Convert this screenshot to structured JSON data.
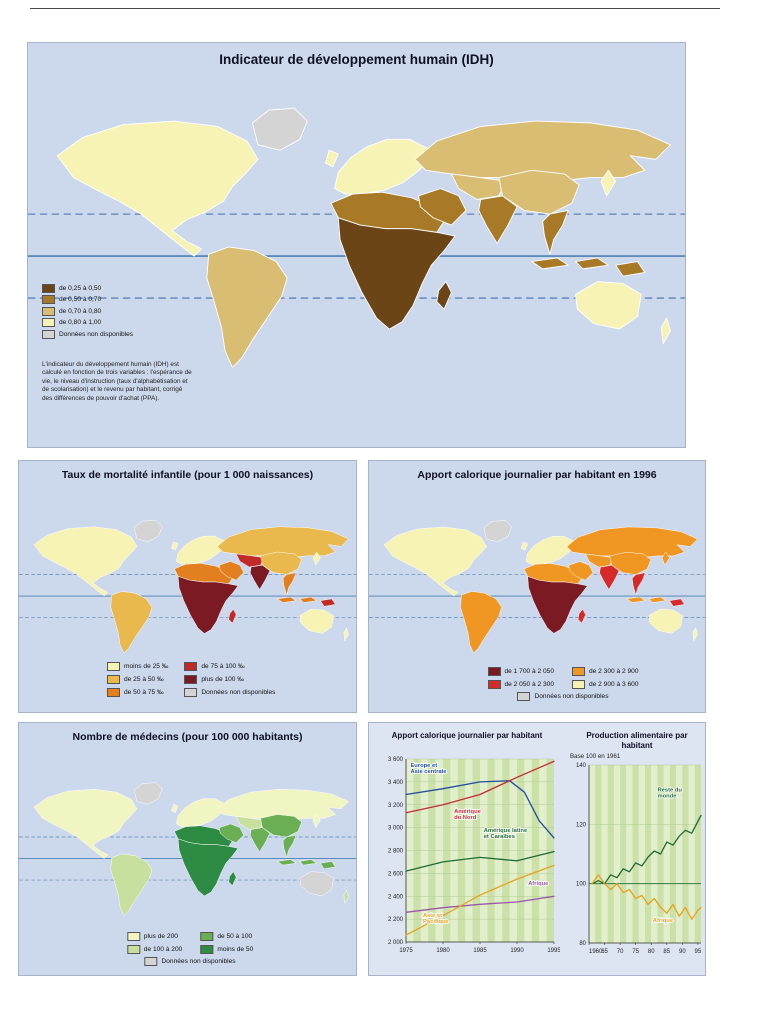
{
  "panels": {
    "idh": {
      "title": "Indicateur de développement humain (IDH)",
      "legend": [
        {
          "label": "de 0,25 à 0,50",
          "color": "#6b4516"
        },
        {
          "label": "de 0,50 à 0,70",
          "color": "#a87a28"
        },
        {
          "label": "de 0,70 à 0,80",
          "color": "#d9bd72"
        },
        {
          "label": "de 0,80 à 1,00",
          "color": "#f7f3b5"
        },
        {
          "label": "Données non disponibles",
          "color": "#d4d4d4"
        }
      ],
      "note": "L'indicateur du développement humain (IDH) est calculé en fonction de trois variables : l'espérance de vie, le niveau d'instruction (taux d'alphabétisation et de scolarisation) et le revenu par habitant, corrigé des différences de pouvoir d'achat (PPA).",
      "region_colors": {
        "greenland": "#d4d4d4",
        "north_america": "#f7f3b5",
        "south_america": "#d9bd72",
        "europe": "#f7f3b5",
        "uk": "#f7f3b5",
        "africa_north": "#a87a28",
        "africa": "#6b4516",
        "madagascar": "#6b4516",
        "russia": "#d9bd72",
        "central_asia": "#d9bd72",
        "middle_east": "#a87a28",
        "india": "#a87a28",
        "china": "#d9bd72",
        "southeast_asia": "#a87a28",
        "indonesia": "#a87a28",
        "new_guinea": "#a87a28",
        "australia": "#f7f3b5",
        "japan": "#f7f3b5",
        "new_zealand": "#f7f3b5"
      }
    },
    "mortality": {
      "title": "Taux de mortalité infantile (pour 1 000 naissances)",
      "legend": [
        {
          "label": "moins de 25 ‰",
          "color": "#f7f3b5"
        },
        {
          "label": "de 25 à 50 ‰",
          "color": "#e9b94e"
        },
        {
          "label": "de 50 à 75 ‰",
          "color": "#e2801f"
        },
        {
          "label": "de 75 à 100 ‰",
          "color": "#c22a28"
        },
        {
          "label": "plus de 100 ‰",
          "color": "#7b1a23"
        },
        {
          "label": "Données non disponibles",
          "color": "#d4d4d4"
        }
      ],
      "region_colors": {
        "greenland": "#d4d4d4",
        "north_america": "#f7f3b5",
        "south_america": "#e9b94e",
        "europe": "#f7f3b5",
        "uk": "#f7f3b5",
        "africa_north": "#e2801f",
        "africa": "#7b1a23",
        "madagascar": "#c22a28",
        "russia": "#e9b94e",
        "central_asia": "#c22a28",
        "middle_east": "#e2801f",
        "india": "#7b1a23",
        "china": "#e9b94e",
        "southeast_asia": "#e2801f",
        "indonesia": "#e2801f",
        "new_guinea": "#c22a28",
        "australia": "#f7f3b5",
        "japan": "#f7f3b5",
        "new_zealand": "#f7f3b5"
      }
    },
    "calories": {
      "title": "Apport calorique journalier par habitant en 1996",
      "legend": [
        {
          "label": "de 1 700 à 2 050",
          "color": "#7b1a23"
        },
        {
          "label": "de 2 050 à 2 300",
          "color": "#d62a2a"
        },
        {
          "label": "de 2 300 à 2 900",
          "color": "#ef9722"
        },
        {
          "label": "de 2 900 à 3 600",
          "color": "#f7f3b5"
        },
        {
          "label": "Données non disponibles",
          "color": "#d4d4d4"
        }
      ],
      "region_colors": {
        "greenland": "#d4d4d4",
        "north_america": "#f7f3b5",
        "south_america": "#ef9722",
        "europe": "#f7f3b5",
        "uk": "#f7f3b5",
        "africa_north": "#ef9722",
        "africa": "#7b1a23",
        "madagascar": "#d62a2a",
        "russia": "#ef9722",
        "central_asia": "#ef9722",
        "middle_east": "#ef9722",
        "india": "#d62a2a",
        "china": "#ef9722",
        "southeast_asia": "#d62a2a",
        "indonesia": "#ef9722",
        "new_guinea": "#d62a2a",
        "australia": "#f7f3b5",
        "japan": "#ef9722",
        "new_zealand": "#f7f3b5"
      }
    },
    "doctors": {
      "title": "Nombre de médecins (pour 100 000 habitants)",
      "legend": [
        {
          "label": "plus de 200",
          "color": "#f0f5c2"
        },
        {
          "label": "de 100 à 200",
          "color": "#c8e09e"
        },
        {
          "label": "de 50 à 100",
          "color": "#6aaf53"
        },
        {
          "label": "moins de 50",
          "color": "#2e8b44"
        },
        {
          "label": "Données non disponibles",
          "color": "#d4d4d4"
        }
      ],
      "region_colors": {
        "greenland": "#d4d4d4",
        "north_america": "#f0f5c2",
        "south_america": "#c8e09e",
        "europe": "#f0f5c2",
        "uk": "#f0f5c2",
        "africa_north": "#2e8b44",
        "africa": "#2e8b44",
        "madagascar": "#2e8b44",
        "russia": "#f0f5c2",
        "central_asia": "#c8e09e",
        "middle_east": "#6aaf53",
        "india": "#6aaf53",
        "china": "#6aaf53",
        "southeast_asia": "#6aaf53",
        "indonesia": "#6aaf53",
        "new_guinea": "#6aaf53",
        "australia": "#d4d4d4",
        "japan": "#f0f5c2",
        "new_zealand": "#c8e09e"
      }
    }
  },
  "chart_data": [
    {
      "type": "line",
      "title": "Apport calorique journalier par habitant",
      "xlabel": "",
      "ylabel": "",
      "xlim": [
        1975,
        1995
      ],
      "ylim": [
        2000,
        3600
      ],
      "x_ticks": [
        1975,
        1980,
        1985,
        1990,
        1995
      ],
      "x_tick_labels": [
        "1975",
        "1980",
        "1985",
        "1990",
        "1995"
      ],
      "y_ticks": [
        2000,
        2200,
        2400,
        2600,
        2800,
        3000,
        3200,
        3400,
        3600
      ],
      "y_tick_labels": [
        "2 000",
        "2 200",
        "2 400",
        "2 600",
        "2 800",
        "3 000",
        "3 200",
        "3 400",
        "3 600"
      ],
      "grid": true,
      "legend_position": "inline-labels",
      "series": [
        {
          "name": "Europe et Asie centrale",
          "label_lines": [
            "Europe et",
            "Asie centrale"
          ],
          "color": "#1f4e9e",
          "x": [
            1975,
            1980,
            1985,
            1989,
            1991,
            1993,
            1995
          ],
          "values": [
            3290,
            3340,
            3400,
            3410,
            3310,
            3060,
            2910
          ],
          "label_pos": [
            1975.6,
            3530
          ]
        },
        {
          "name": "Amérique du Nord",
          "label_lines": [
            "Amérique",
            "du Nord"
          ],
          "color": "#c92a33",
          "x": [
            1975,
            1980,
            1985,
            1990,
            1995
          ],
          "values": [
            3130,
            3200,
            3290,
            3440,
            3580
          ],
          "label_pos": [
            1981.5,
            3130
          ]
        },
        {
          "name": "Amérique latine et Caraïbes",
          "label_lines": [
            "Amérique latine",
            "et Caraïbes"
          ],
          "color": "#1e6b33",
          "x": [
            1975,
            1980,
            1985,
            1990,
            1995
          ],
          "values": [
            2620,
            2700,
            2740,
            2710,
            2790
          ],
          "label_pos": [
            1985.5,
            2960
          ]
        },
        {
          "name": "Afrique",
          "label_lines": [
            "Afrique"
          ],
          "color": "#9b57a8",
          "x": [
            1975,
            1980,
            1985,
            1990,
            1995
          ],
          "values": [
            2260,
            2300,
            2330,
            2350,
            2400
          ],
          "label_pos": [
            1991.5,
            2500
          ]
        },
        {
          "name": "Asie et Pacifique",
          "label_lines": [
            "Asie et",
            "Pacifique"
          ],
          "color": "#e8a21e",
          "x": [
            1975,
            1980,
            1985,
            1990,
            1995
          ],
          "values": [
            2060,
            2230,
            2410,
            2550,
            2670
          ],
          "label_pos": [
            1977.3,
            2220
          ]
        }
      ]
    },
    {
      "type": "line",
      "title": "Production alimentaire par habitant",
      "subtitle": "Base 100 en 1961",
      "xlabel": "",
      "ylabel": "",
      "xlim": [
        1960,
        1996
      ],
      "ylim": [
        80,
        140
      ],
      "x_ticks": [
        1960,
        1965,
        1970,
        1975,
        1980,
        1985,
        1990,
        1995
      ],
      "x_tick_labels": [
        "1960",
        "65",
        "70",
        "75",
        "80",
        "85",
        "90",
        "95"
      ],
      "y_ticks": [
        80,
        100,
        120,
        140
      ],
      "y_tick_labels": [
        "80",
        "100",
        "120",
        "140"
      ],
      "grid": true,
      "ref_line": 100,
      "legend_position": "inline-labels",
      "series": [
        {
          "name": "Reste du monde",
          "label_lines": [
            "Reste du",
            "monde"
          ],
          "color": "#1e6b33",
          "x": [
            1961,
            1963,
            1965,
            1967,
            1969,
            1971,
            1973,
            1975,
            1977,
            1979,
            1981,
            1983,
            1985,
            1987,
            1989,
            1991,
            1993,
            1995,
            1996
          ],
          "values": [
            100,
            101,
            100,
            103,
            102,
            105,
            104,
            107,
            106,
            109,
            111,
            110,
            114,
            113,
            116,
            118,
            117,
            121,
            123
          ],
          "label_pos": [
            1982,
            131
          ]
        },
        {
          "name": "Afrique",
          "label_lines": [
            "Afrique"
          ],
          "color": "#e8a21e",
          "x": [
            1961,
            1963,
            1965,
            1967,
            1969,
            1971,
            1973,
            1975,
            1977,
            1979,
            1981,
            1983,
            1985,
            1987,
            1989,
            1991,
            1993,
            1995,
            1996
          ],
          "values": [
            100,
            103,
            100,
            98,
            100,
            97,
            98,
            95,
            96,
            93,
            95,
            92,
            90,
            93,
            89,
            92,
            88,
            91,
            92
          ],
          "label_pos": [
            1980.5,
            87
          ]
        }
      ]
    }
  ]
}
